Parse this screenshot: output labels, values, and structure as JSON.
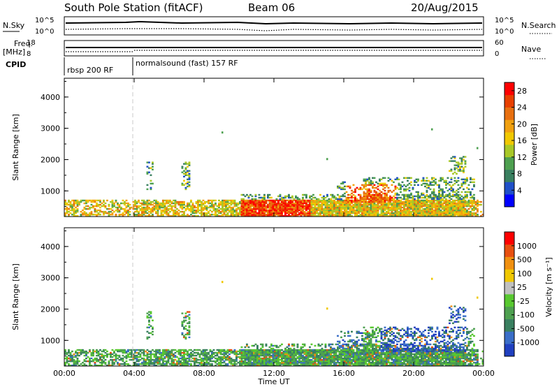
{
  "header": {
    "station": "South Pole Station (fitACF)",
    "beam": "Beam 06",
    "date": "20/Aug/2015"
  },
  "summary_panels": {
    "nsky_label": "N.Sky",
    "nsky_ticks": [
      "10^5",
      "10^0"
    ],
    "nsearch_label": "N.Search",
    "nsearch_ticks": [
      "10^5",
      "10^0"
    ],
    "freq_label_line1": "Freq.",
    "freq_label_line2": "[MHz]",
    "freq_ticks": [
      "18",
      "8"
    ],
    "nave_label": "Nave",
    "nave_ticks": [
      "60",
      "0"
    ],
    "cpid_label": "CPID",
    "cpid_modes": [
      {
        "name": "rbsp 200 RF",
        "start_hour": 0,
        "end_hour": 4
      },
      {
        "name": "normalsound (fast) 157 RF",
        "start_hour": 4,
        "end_hour": 24
      }
    ]
  },
  "chart_data": [
    {
      "type": "heatmap",
      "title": "",
      "parameter": "Power",
      "ylabel": "Slant Range [km]",
      "xlabel": "",
      "x_ticks": [
        "00:00",
        "04:00",
        "08:00",
        "12:00",
        "16:00",
        "20:00",
        "00:00"
      ],
      "y_ticks": [
        "1000",
        "2000",
        "3000",
        "4000"
      ],
      "xlim": [
        0,
        24
      ],
      "ylim": [
        180,
        4600
      ],
      "colorbar": {
        "label": "Power [dB]",
        "ticks": [
          "4",
          "8",
          "12",
          "16",
          "20",
          "24",
          "28"
        ],
        "range": [
          0,
          30
        ],
        "colors": [
          "#0000ff",
          "#2050c8",
          "#3a8060",
          "#4ea050",
          "#a8c828",
          "#f0c800",
          "#f0a010",
          "#e87010",
          "#e84000",
          "#ff0000"
        ]
      }
    },
    {
      "type": "heatmap",
      "title": "",
      "parameter": "Velocity",
      "ylabel": "Slant Range [km]",
      "xlabel": "Time UT",
      "x_ticks": [
        "00:00",
        "04:00",
        "08:00",
        "12:00",
        "16:00",
        "20:00",
        "00:00"
      ],
      "y_ticks": [
        "1000",
        "2000",
        "3000",
        "4000"
      ],
      "xlim": [
        0,
        24
      ],
      "ylim": [
        180,
        4600
      ],
      "colorbar": {
        "label": "Velocity [m s⁻¹]",
        "ticks": [
          "1000",
          "500",
          "100",
          "25",
          "-25",
          "-100",
          "-500",
          "-1000"
        ],
        "range": [
          -1200,
          1200
        ],
        "colors": [
          "#2040c0",
          "#3a6ec8",
          "#3a8060",
          "#4ea050",
          "#58c830",
          "#c0c0c0",
          "#f0c800",
          "#f09010",
          "#e85010",
          "#ff0000"
        ]
      }
    }
  ]
}
